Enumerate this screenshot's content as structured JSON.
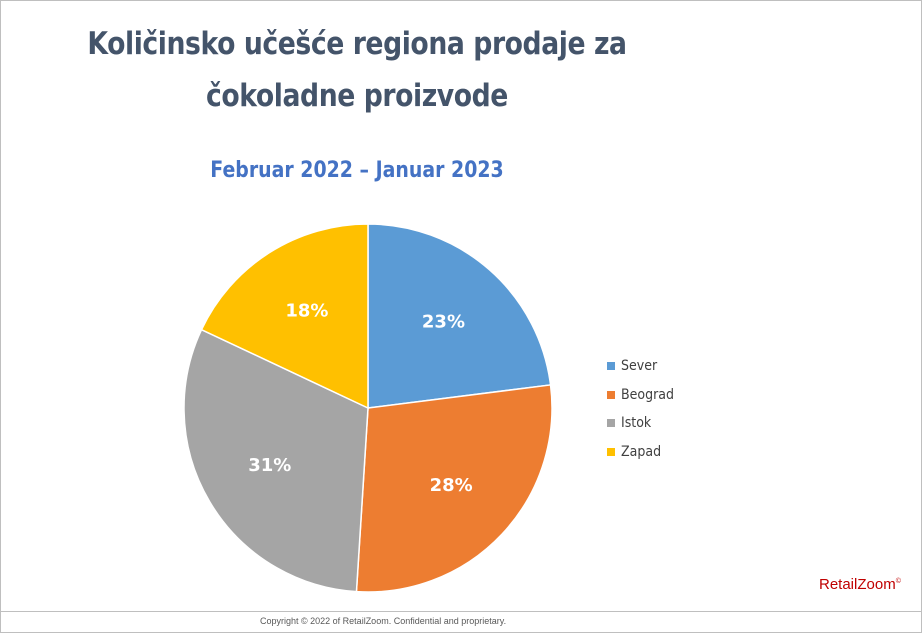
{
  "chart_data": {
    "type": "pie",
    "title_lines": [
      "Količinsko učešće regiona prodaje za",
      "čokoladne proizvode"
    ],
    "subtitle": "Februar 2022 – Januar 2023",
    "categories": [
      "Sever",
      "Beograd",
      "Istok",
      "Zapad"
    ],
    "values": [
      23,
      28,
      31,
      18
    ],
    "data_labels": [
      "23%",
      "28%",
      "31%",
      "18%"
    ],
    "colors": [
      "#5b9bd5",
      "#ed7d31",
      "#a5a5a5",
      "#ffc000"
    ],
    "legend_position": "right"
  },
  "brand": {
    "name": "RetailZoom",
    "mark": "©"
  },
  "footer": {
    "text": "Copyright © 2022 of RetailZoom. Confidential and proprietary."
  }
}
